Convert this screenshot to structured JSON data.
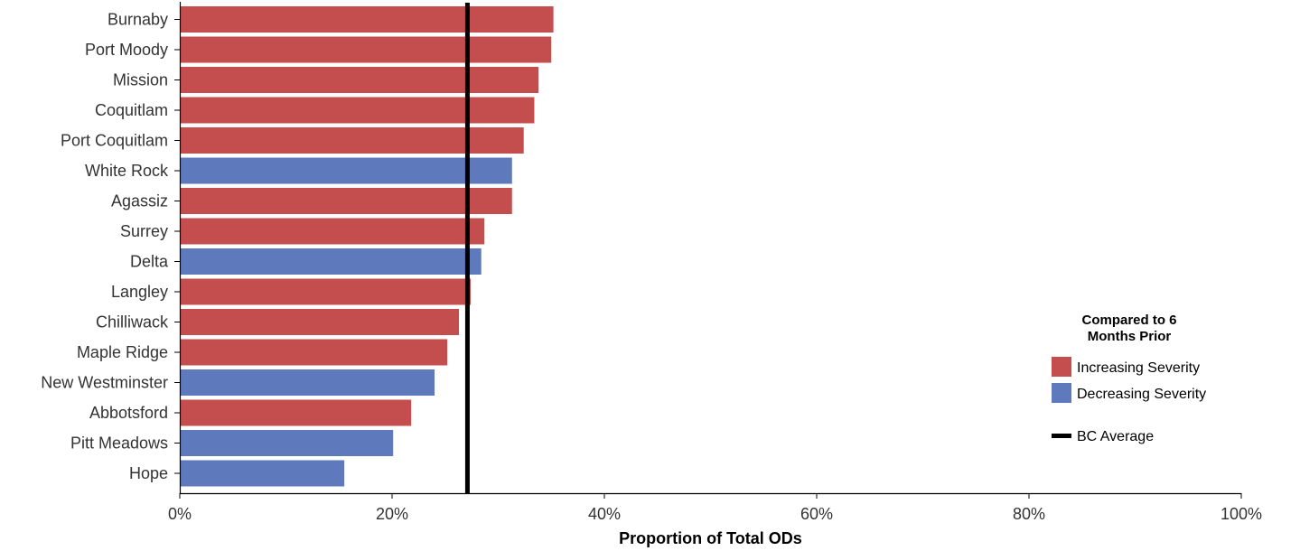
{
  "chart_data": {
    "type": "bar",
    "orientation": "horizontal",
    "categories": [
      "Burnaby",
      "Port Moody",
      "Mission",
      "Coquitlam",
      "Port Coquitlam",
      "White Rock",
      "Agassiz",
      "Surrey",
      "Delta",
      "Langley",
      "Chilliwack",
      "Maple Ridge",
      "New Westminster",
      "Abbotsford",
      "Pitt Meadows",
      "Hope"
    ],
    "values": [
      35.2,
      35.0,
      33.8,
      33.4,
      32.4,
      31.3,
      31.3,
      28.7,
      28.4,
      27.4,
      26.3,
      25.2,
      24.0,
      21.8,
      20.1,
      15.5
    ],
    "trend": [
      "increasing",
      "increasing",
      "increasing",
      "increasing",
      "increasing",
      "decreasing",
      "increasing",
      "increasing",
      "decreasing",
      "increasing",
      "increasing",
      "increasing",
      "decreasing",
      "increasing",
      "decreasing",
      "decreasing"
    ],
    "reference_line": {
      "label": "BC Average",
      "value": 27.1,
      "color": "#000000"
    },
    "xlabel": "Proportion of Total ODs",
    "xlim": [
      0,
      100
    ],
    "x_ticks": [
      0,
      20,
      40,
      60,
      80,
      100
    ],
    "x_tick_labels": [
      "0%",
      "20%",
      "40%",
      "60%",
      "80%",
      "100%"
    ],
    "grid": false,
    "legend": {
      "placement": "right",
      "title_lines": [
        "Compared to 6",
        "Months Prior"
      ],
      "entries": [
        {
          "key": "increasing",
          "label": "Increasing Severity",
          "color": "#c44e4e"
        },
        {
          "key": "decreasing",
          "label": "Decreasing Severity",
          "color": "#5e7abd"
        }
      ]
    }
  }
}
